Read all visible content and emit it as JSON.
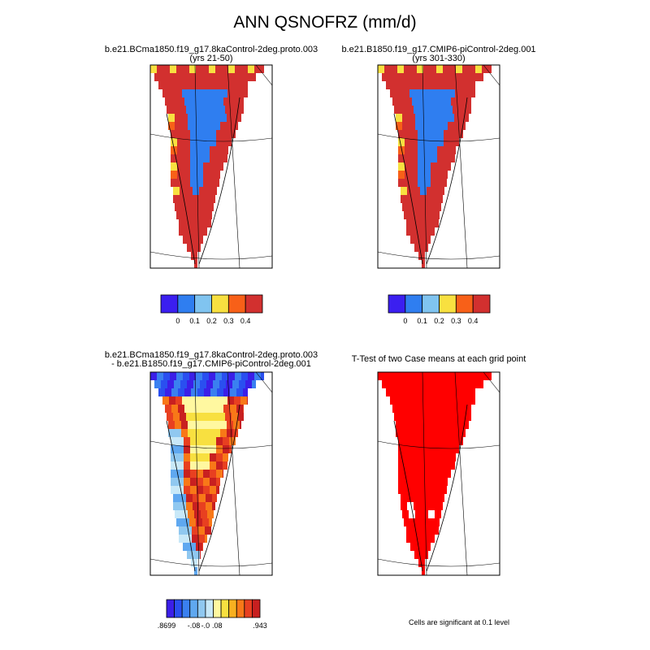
{
  "title": "ANN QSNOFRZ (mm/d)",
  "panels": [
    {
      "title": "b.e21.BCma1850.f19_g17.8kaControl-2deg.proto.003",
      "subtitle": "(yrs 21-50)"
    },
    {
      "title": "b.e21.B1850.f19_g17.CMIP6-piControl-2deg.001",
      "subtitle": "(yrs 301-330)"
    },
    {
      "title": "b.e21.BCma1850.f19_g17.8kaControl-2deg.proto.003",
      "subtitle": "- b.e21.B1850.f19_g17.CMIP6-piControl-2deg.001"
    },
    {
      "title": "T-Test of two Case means at each grid point"
    }
  ],
  "colorbars": [
    {
      "colors": [
        "#3b1ff0",
        "#2f7ef0",
        "#80c4f0",
        "#f8e040",
        "#f86018",
        "#d2302f"
      ],
      "labels": [
        "0",
        "0.1",
        "0.2",
        "0.3",
        "0.4"
      ]
    },
    {
      "colors": [
        "#3b1ff0",
        "#2f7ef0",
        "#80c4f0",
        "#f8e040",
        "#f86018",
        "#d2302f"
      ],
      "labels": [
        "0",
        "0.1",
        "0.2",
        "0.3",
        "0.4"
      ]
    },
    {
      "colors": [
        "#3b1fe8",
        "#2a4ff0",
        "#3a80f0",
        "#5fa8f0",
        "#90c8f0",
        "#c8e8f8",
        "#fff8a0",
        "#f8e040",
        "#f8b020",
        "#f87818",
        "#e84020",
        "#c82020"
      ],
      "labels": [
        ".8699",
        "-.08",
        "-.0",
        ".08",
        ".943"
      ]
    }
  ],
  "footnote": "Cells are significant at 0.1 level"
}
